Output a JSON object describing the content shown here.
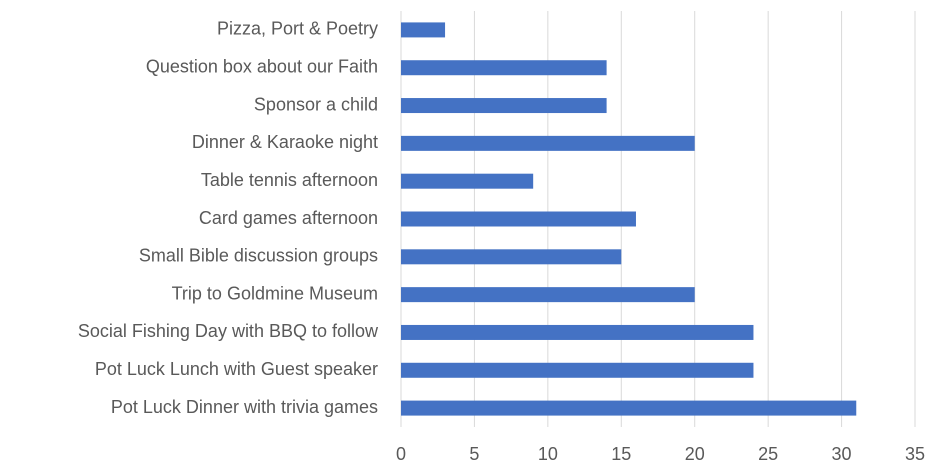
{
  "chart_data": {
    "type": "hbar",
    "categories": [
      "Pizza, Port & Poetry",
      "Question box about our Faith",
      "Sponsor a child",
      "Dinner & Karaoke night",
      "Table tennis afternoon",
      "Card games afternoon",
      "Small Bible discussion groups",
      "Trip to Goldmine Museum",
      "Social Fishing Day with BBQ to follow",
      "Pot Luck Lunch with Guest speaker",
      "Pot Luck Dinner with trivia games"
    ],
    "values": [
      3,
      14,
      14,
      20,
      9,
      16,
      15,
      20,
      24,
      24,
      31
    ],
    "color": "#4472c4",
    "xlim": [
      0,
      35
    ],
    "xticks": [
      0,
      5,
      10,
      15,
      20,
      25,
      30,
      35
    ],
    "grid": true
  }
}
